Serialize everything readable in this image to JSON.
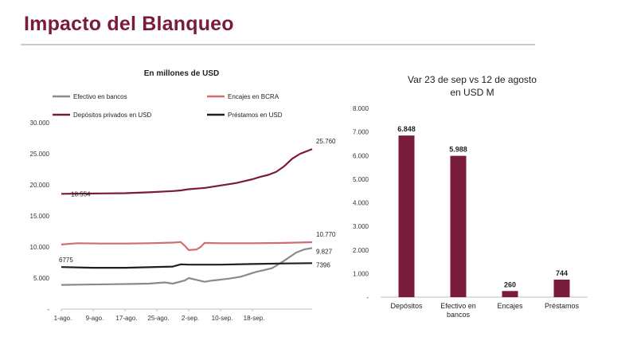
{
  "slide": {
    "title": "Impacto del Blanqueo"
  },
  "colors": {
    "title": "#7a1a3c",
    "efectivo": "#8a8a8a",
    "encajes": "#cf6f6f",
    "depositos": "#7a1a3c",
    "prestamos": "#1f1f1f",
    "bars": "#7a1a3c"
  },
  "chart_data": [
    {
      "type": "line",
      "title": "En millones de USD",
      "x_tick_labels": [
        "1-ago.",
        "9-ago.",
        "17-ago.",
        "25-ago.",
        "2-sep.",
        "10-sep.",
        "18-sep."
      ],
      "xlim": [
        "1-ago.",
        "23-sep."
      ],
      "ylim": [
        0,
        30000
      ],
      "y_ticks": [
        0,
        5000,
        10000,
        15000,
        20000,
        25000,
        30000
      ],
      "y_tick_labels": [
        "-",
        "5.000",
        "10.000",
        "15.000",
        "20.000",
        "25.000",
        "30.000"
      ],
      "grid": false,
      "legend_position": "top",
      "series": [
        {
          "name": "Efectivo en bancos",
          "color_key": "efectivo",
          "points": [
            [
              0,
              3900
            ],
            [
              6,
              3950
            ],
            [
              12,
              4000
            ],
            [
              18,
              4050
            ],
            [
              22,
              4100
            ],
            [
              26,
              4300
            ],
            [
              28,
              4100
            ],
            [
              31,
              4600
            ],
            [
              32,
              5000
            ],
            [
              34,
              4700
            ],
            [
              36,
              4400
            ],
            [
              38,
              4600
            ],
            [
              42,
              4900
            ],
            [
              45,
              5200
            ],
            [
              47,
              5600
            ],
            [
              49,
              6000
            ],
            [
              51,
              6300
            ],
            [
              53,
              6600
            ],
            [
              56,
              7800
            ],
            [
              59,
              9100
            ],
            [
              61,
              9600
            ],
            [
              63,
              9827
            ]
          ],
          "end_label": "9.827"
        },
        {
          "name": "Encajes en BCRA",
          "color_key": "encajes",
          "points": [
            [
              0,
              10400
            ],
            [
              4,
              10600
            ],
            [
              10,
              10550
            ],
            [
              16,
              10550
            ],
            [
              22,
              10600
            ],
            [
              28,
              10700
            ],
            [
              30,
              10800
            ],
            [
              31,
              10200
            ],
            [
              32,
              9500
            ],
            [
              34,
              9600
            ],
            [
              35,
              10000
            ],
            [
              36,
              10650
            ],
            [
              40,
              10600
            ],
            [
              48,
              10600
            ],
            [
              56,
              10650
            ],
            [
              63,
              10770
            ]
          ],
          "end_label": "10.770"
        },
        {
          "name": "Depósitos privados en USD",
          "color_key": "depositos",
          "points": [
            [
              0,
              18554
            ],
            [
              8,
              18600
            ],
            [
              16,
              18650
            ],
            [
              22,
              18800
            ],
            [
              28,
              19000
            ],
            [
              30,
              19100
            ],
            [
              32,
              19300
            ],
            [
              36,
              19500
            ],
            [
              40,
              19900
            ],
            [
              44,
              20300
            ],
            [
              46,
              20600
            ],
            [
              48,
              20900
            ],
            [
              50,
              21300
            ],
            [
              52,
              21600
            ],
            [
              54,
              22100
            ],
            [
              56,
              23000
            ],
            [
              58,
              24200
            ],
            [
              60,
              25000
            ],
            [
              63,
              25760
            ]
          ],
          "start_label": "18.554",
          "end_label": "25.760"
        },
        {
          "name": "Préstamos en USD",
          "color_key": "prestamos",
          "points": [
            [
              0,
              6775
            ],
            [
              8,
              6650
            ],
            [
              16,
              6650
            ],
            [
              22,
              6750
            ],
            [
              28,
              6850
            ],
            [
              30,
              7200
            ],
            [
              32,
              7150
            ],
            [
              40,
              7150
            ],
            [
              48,
              7250
            ],
            [
              56,
              7350
            ],
            [
              63,
              7396
            ]
          ],
          "start_label": "6775",
          "end_label": "7396"
        }
      ]
    },
    {
      "type": "bar",
      "title": "Var 23 de sep vs 12 de agosto",
      "subtitle": "en USD M",
      "categories": [
        "Depósitos",
        "Efectivo en bancos",
        "Encajes",
        "Préstamos"
      ],
      "category_lines": [
        [
          "Depósitos"
        ],
        [
          "Efectivo en",
          "bancos"
        ],
        [
          "Encajes"
        ],
        [
          "Préstamos"
        ]
      ],
      "values": [
        6848,
        5988,
        260,
        744
      ],
      "value_labels": [
        "6.848",
        "5.988",
        "260",
        "744"
      ],
      "ylim": [
        0,
        8000
      ],
      "y_ticks": [
        0,
        1000,
        2000,
        3000,
        4000,
        5000,
        6000,
        7000,
        8000
      ],
      "y_tick_labels": [
        "-",
        "1.000",
        "2.000",
        "3.000",
        "4.000",
        "5.000",
        "6.000",
        "7.000",
        "8.000"
      ],
      "grid": false
    }
  ]
}
